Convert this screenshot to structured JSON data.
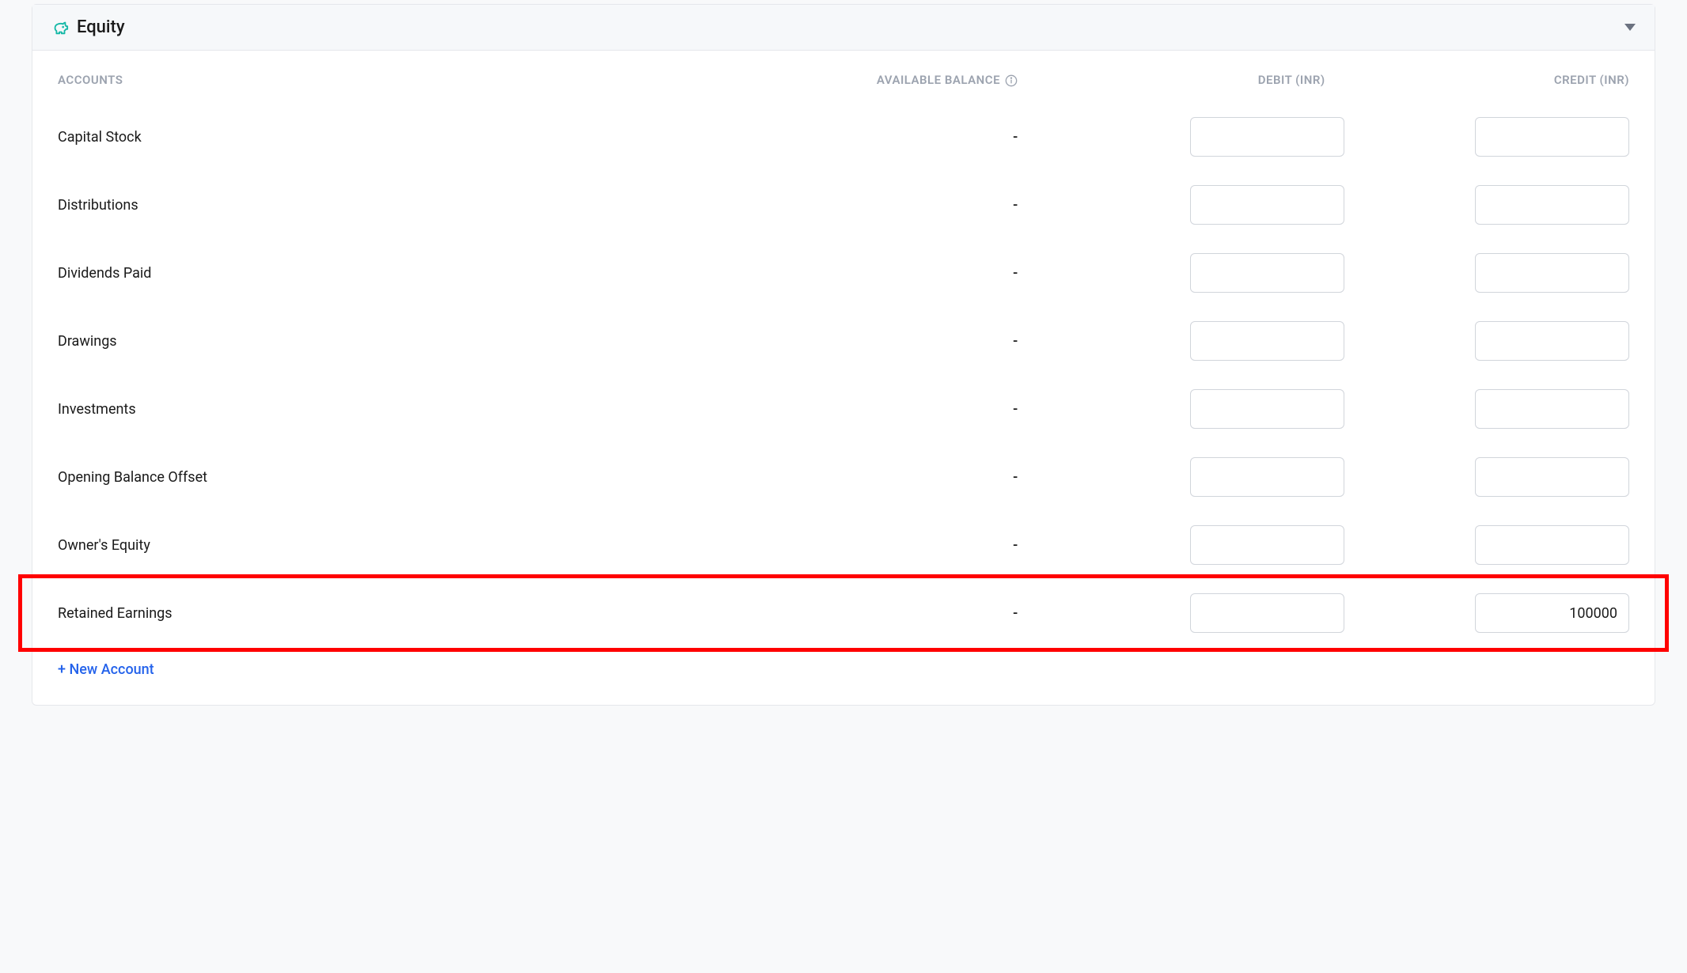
{
  "section": {
    "title": "Equity",
    "icon_color": "#14b8a6"
  },
  "columns": {
    "accounts": "ACCOUNTS",
    "balance": "AVAILABLE BALANCE",
    "debit": "DEBIT (INR)",
    "credit": "CREDIT (INR)"
  },
  "rows": [
    {
      "name": "Capital Stock",
      "balance": "-",
      "debit": "",
      "credit": "",
      "highlighted": false
    },
    {
      "name": "Distributions",
      "balance": "-",
      "debit": "",
      "credit": "",
      "highlighted": false
    },
    {
      "name": "Dividends Paid",
      "balance": "-",
      "debit": "",
      "credit": "",
      "highlighted": false
    },
    {
      "name": "Drawings",
      "balance": "-",
      "debit": "",
      "credit": "",
      "highlighted": false
    },
    {
      "name": "Investments",
      "balance": "-",
      "debit": "",
      "credit": "",
      "highlighted": false
    },
    {
      "name": "Opening Balance Offset",
      "balance": "-",
      "debit": "",
      "credit": "",
      "highlighted": false
    },
    {
      "name": "Owner's Equity",
      "balance": "-",
      "debit": "",
      "credit": "",
      "highlighted": false
    },
    {
      "name": "Retained Earnings",
      "balance": "-",
      "debit": "",
      "credit": "100000",
      "highlighted": true
    }
  ],
  "actions": {
    "new_account": "+ New Account"
  },
  "colors": {
    "header_text": "#9ca3af",
    "body_text": "#1a1a1a",
    "link": "#2563eb",
    "border": "#d1d5db",
    "highlight_border": "#ff0000",
    "panel_bg": "#ffffff",
    "page_bg": "#f8f9fa",
    "header_bg": "#f6f8fa"
  }
}
